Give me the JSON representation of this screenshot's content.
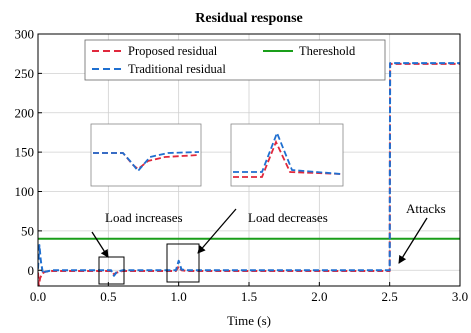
{
  "chart_data": {
    "type": "line",
    "title": "Residual response",
    "xlabel": "Time (s)",
    "ylabel": "",
    "xlim": [
      0,
      3
    ],
    "ylim": [
      -20,
      300
    ],
    "xticks": [
      "0.0",
      "0.5",
      "1.0",
      "1.5",
      "2.0",
      "2.5",
      "3.0"
    ],
    "yticks": [
      "0",
      "50",
      "100",
      "150",
      "200",
      "250",
      "300"
    ],
    "xtick_values": [
      0,
      0.5,
      1.0,
      1.5,
      2.0,
      2.5,
      3.0
    ],
    "ytick_values": [
      0,
      50,
      100,
      150,
      200,
      250,
      300
    ],
    "legend_position": "top",
    "series": [
      {
        "name": "Proposed residual",
        "color": "#e0283c",
        "style": "dashed",
        "x": [
          0,
          0.005,
          0.015,
          0.03,
          0.05,
          0.1,
          0.3,
          0.5,
          0.52,
          0.54,
          0.56,
          0.6,
          0.9,
          0.98,
          1.0,
          1.02,
          1.06,
          1.1,
          1.5,
          2.0,
          2.5,
          2.503,
          2.51,
          3.0
        ],
        "y": [
          -3,
          -20,
          -10,
          -4,
          -2,
          -1,
          -1,
          -1,
          -1,
          -5,
          -3,
          -1,
          -1,
          -1,
          5,
          0,
          -1,
          -1,
          -1,
          -1,
          -1,
          262,
          262,
          262
        ]
      },
      {
        "name": "Traditional residual",
        "color": "#1f6fd0",
        "style": "dashed",
        "x": [
          0,
          0.01,
          0.02,
          0.035,
          0.05,
          0.1,
          0.3,
          0.5,
          0.52,
          0.54,
          0.56,
          0.6,
          0.9,
          0.98,
          1.0,
          1.02,
          1.06,
          1.1,
          1.5,
          2.0,
          2.5,
          2.503,
          2.51,
          3.0
        ],
        "y": [
          2,
          32,
          12,
          -4,
          -2,
          0,
          0,
          0,
          0,
          -7,
          -2,
          0,
          0,
          0,
          12,
          1,
          0,
          0,
          0,
          0,
          0,
          263,
          263,
          263
        ]
      },
      {
        "name": "Thereshold",
        "color": "#1a9e1a",
        "style": "solid",
        "x": [
          0,
          3
        ],
        "y": [
          40,
          40
        ]
      }
    ],
    "annotations": [
      "Load increases",
      "Load decreases",
      "Attacks"
    ]
  },
  "colors": {
    "proposed": "#e0283c",
    "traditional": "#1f6fd0",
    "threshold": "#1a9e1a"
  }
}
